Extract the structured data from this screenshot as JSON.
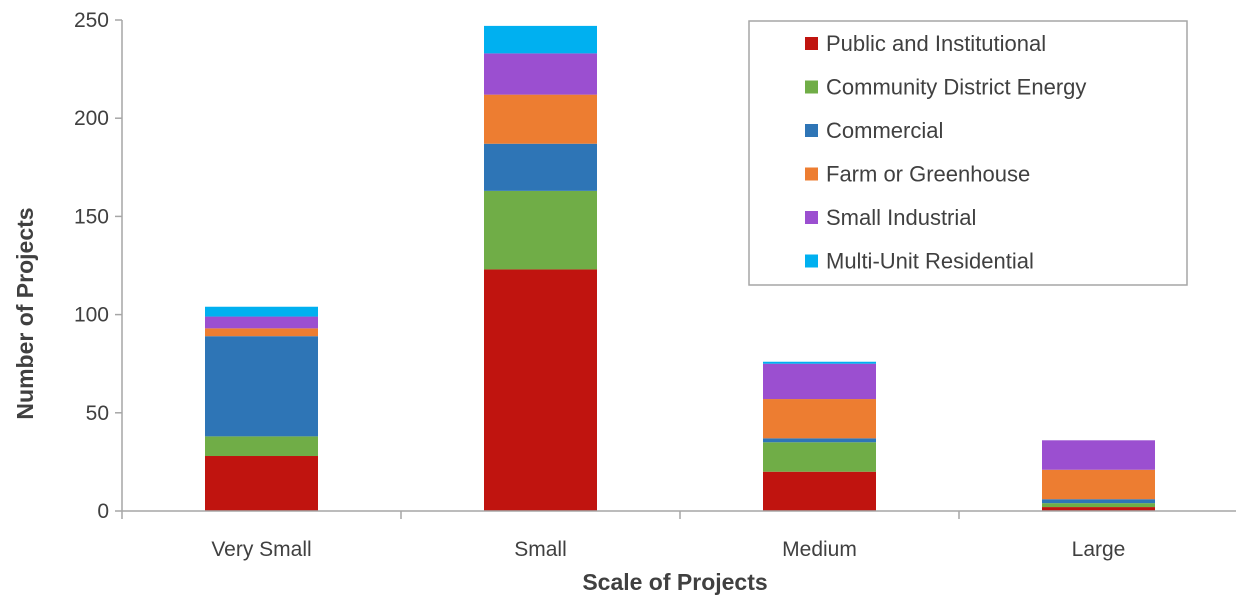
{
  "chart_data": {
    "type": "bar",
    "stacked": true,
    "title": "",
    "xlabel": "Scale of Projects",
    "ylabel": "Number of Projects",
    "ylim": [
      0,
      250
    ],
    "yticks": [
      0,
      50,
      100,
      150,
      200,
      250
    ],
    "categories": [
      "Very Small",
      "Small",
      "Medium",
      "Large"
    ],
    "legend_position": "top-right",
    "grid": false,
    "series": [
      {
        "name": "Public and Institutional",
        "color": "#c0140f",
        "values": [
          28,
          123,
          20,
          2
        ]
      },
      {
        "name": "Community District Energy",
        "color": "#70ad47",
        "values": [
          10,
          40,
          15,
          2
        ]
      },
      {
        "name": "Commercial",
        "color": "#2e75b6",
        "values": [
          51,
          24,
          2,
          2
        ]
      },
      {
        "name": "Farm or Greenhouse",
        "color": "#ed7d31",
        "values": [
          4,
          25,
          20,
          15
        ]
      },
      {
        "name": "Small Industrial",
        "color": "#9b4fd0",
        "values": [
          6,
          21,
          18,
          15
        ]
      },
      {
        "name": "Multi-Unit Residential",
        "color": "#00b0f0",
        "values": [
          5,
          14,
          1,
          0
        ]
      }
    ]
  }
}
